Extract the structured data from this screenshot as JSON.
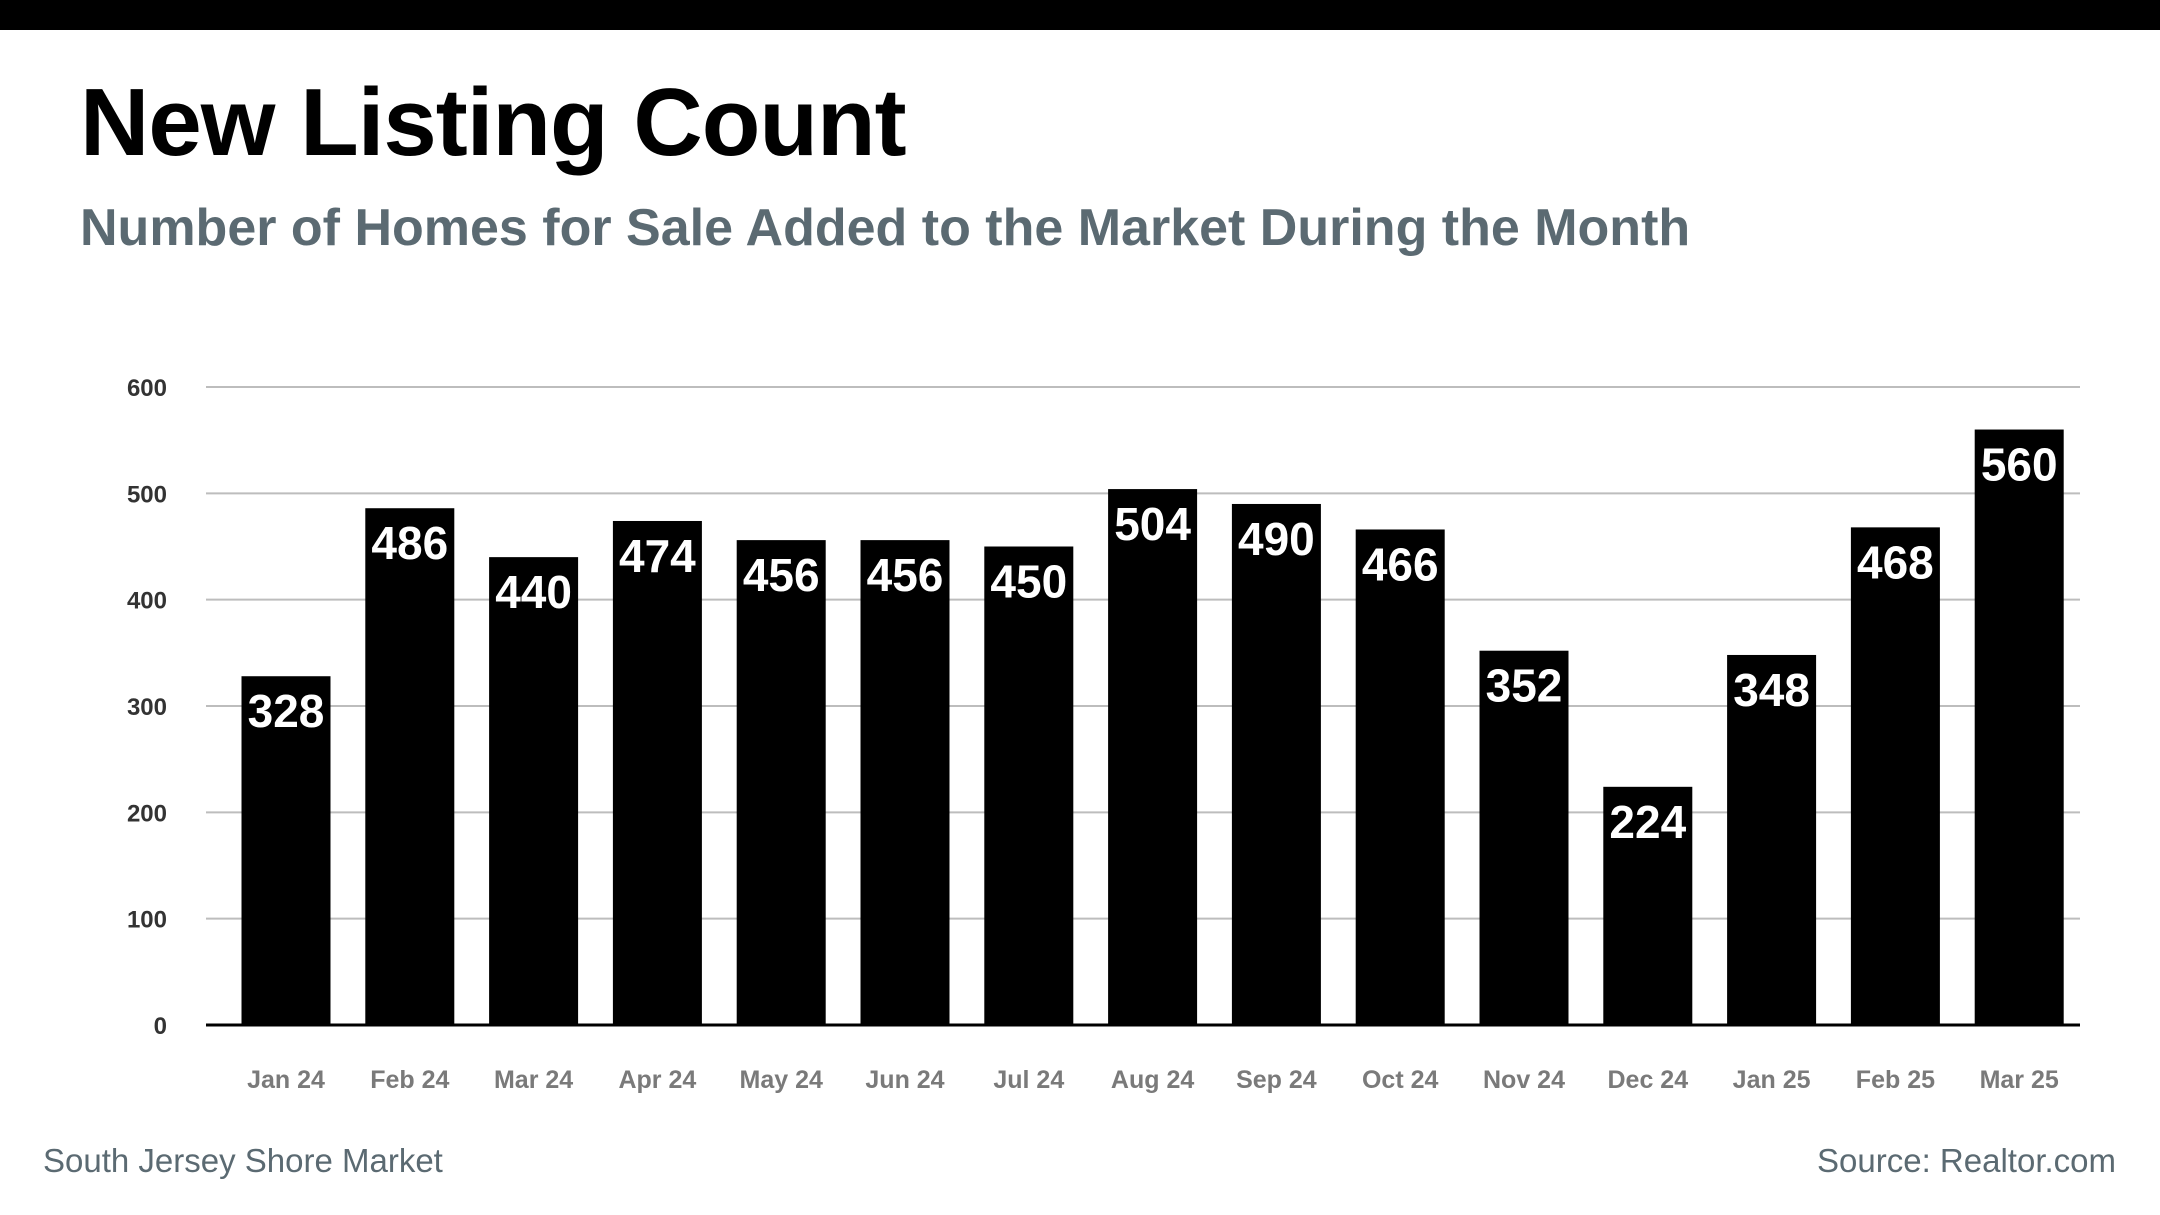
{
  "chart_data": {
    "type": "bar",
    "title": "New Listing Count",
    "subtitle": "Number of Homes for Sale Added to the Market During the Month",
    "categories": [
      "Jan 24",
      "Feb 24",
      "Mar 24",
      "Apr 24",
      "May 24",
      "Jun 24",
      "Jul 24",
      "Aug 24",
      "Sep 24",
      "Oct 24",
      "Nov 24",
      "Dec 24",
      "Jan 25",
      "Feb 25",
      "Mar 25"
    ],
    "values": [
      328,
      486,
      440,
      474,
      456,
      456,
      450,
      504,
      490,
      466,
      352,
      224,
      348,
      468,
      560
    ],
    "yticks": [
      0,
      100,
      200,
      300,
      400,
      500,
      600
    ],
    "ylim": [
      0,
      600
    ],
    "xlabel": "",
    "ylabel": "",
    "grid": true,
    "colors": {
      "bar": "#000000",
      "grid": "#bdbdbd",
      "axis": "#000000",
      "value_label": "#ffffff",
      "subtitle": "#5b6a72"
    }
  },
  "footer": {
    "market": "South Jersey Shore Market",
    "source": "Source: Realtor.com"
  }
}
